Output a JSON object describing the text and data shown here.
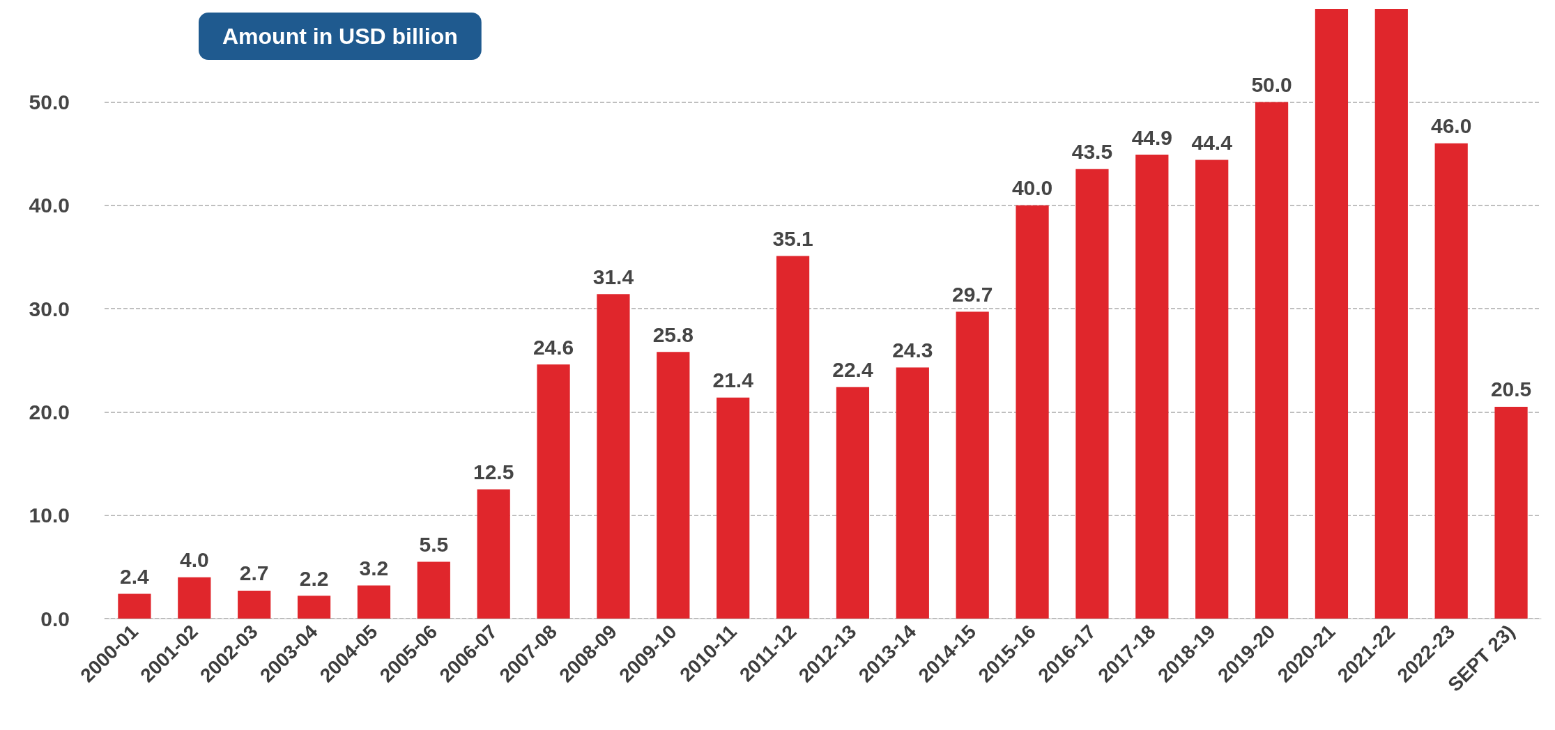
{
  "chart_data": {
    "type": "bar",
    "title": "Amount in USD billion",
    "categories": [
      "2000-01",
      "2001-02",
      "2002-03",
      "2003-04",
      "2004-05",
      "2005-06",
      "2006-07",
      "2007-08",
      "2008-09",
      "2009-10",
      "2010-11",
      "2011-12",
      "2012-13",
      "2013-14",
      "2014-15",
      "2015-16",
      "2016-17",
      "2017-18",
      "2018-19",
      "2019-20",
      "2020-21",
      "2021-22",
      "2022-23",
      "SEPT 23)"
    ],
    "values": [
      2.4,
      4.0,
      2.7,
      2.2,
      3.2,
      5.5,
      12.5,
      24.6,
      31.4,
      25.8,
      21.4,
      35.1,
      22.4,
      24.3,
      29.7,
      40.0,
      43.5,
      44.9,
      44.4,
      50.0,
      59,
      59,
      46.0,
      20.5
    ],
    "value_labels": [
      "2.4",
      "4.0",
      "2.7",
      "2.2",
      "3.2",
      "5.5",
      "12.5",
      "24.6",
      "31.4",
      "25.8",
      "21.4",
      "35.1",
      "22.4",
      "24.3",
      "29.7",
      "40.0",
      "43.5",
      "44.9",
      "44.4",
      "50.0",
      null,
      null,
      "46.0",
      "20.5"
    ],
    "color": "#e0262c",
    "ylim": [
      0,
      59
    ],
    "yticks": [
      {
        "value": 0,
        "label": "0.0"
      },
      {
        "value": 10,
        "label": "10.0"
      },
      {
        "value": 20,
        "label": "20.0"
      },
      {
        "value": 30,
        "label": "30.0"
      },
      {
        "value": 40,
        "label": "40.0"
      },
      {
        "value": 50,
        "label": "50.0"
      }
    ],
    "grid": "y"
  }
}
